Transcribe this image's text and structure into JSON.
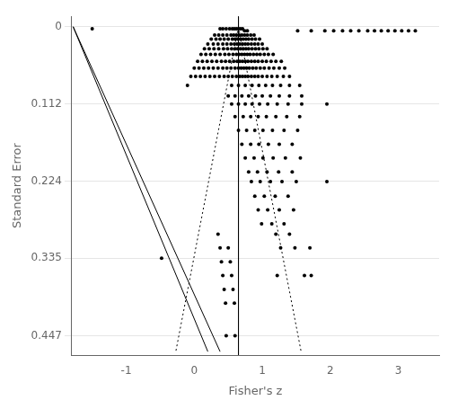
{
  "chart_data": {
    "type": "scatter",
    "xlabel": "Fisher's z",
    "ylabel": "Standard Error",
    "xlim": [
      -1.8,
      3.6
    ],
    "ylim": [
      0.475,
      -0.015
    ],
    "xticks": [
      -1,
      0,
      1,
      2,
      3
    ],
    "yticks": [
      0,
      0.112,
      0.224,
      0.335,
      0.447
    ],
    "grid": "y",
    "series": [
      {
        "type": "line",
        "line_style": "solid",
        "color": "#000000",
        "values": [
          [
            -1.78,
            0
          ],
          [
            0.2,
            0.47
          ]
        ]
      },
      {
        "type": "line",
        "line_style": "solid",
        "color": "#000000",
        "values": [
          [
            -1.78,
            0
          ],
          [
            0.38,
            0.47
          ]
        ]
      },
      {
        "type": "line",
        "line_style": "dotted",
        "color": "#000000",
        "values": [
          [
            0.65,
            0
          ],
          [
            -0.2712,
            0.47
          ]
        ]
      },
      {
        "type": "line",
        "line_style": "dotted",
        "color": "#000000",
        "values": [
          [
            0.65,
            0
          ],
          [
            1.5712,
            0.47
          ]
        ]
      },
      {
        "type": "line",
        "line_style": "solid",
        "color": "#000000",
        "values": [
          [
            0.65,
            -0.015
          ],
          [
            0.65,
            0.475
          ]
        ]
      },
      {
        "type": "scatter",
        "marker": "circle",
        "color": "#000000",
        "values": [
          [
            0.38,
            0.003
          ],
          [
            0.42,
            0.003
          ],
          [
            0.47,
            0.003
          ],
          [
            0.52,
            0.003
          ],
          [
            0.56,
            0.003
          ],
          [
            0.59,
            0.003
          ],
          [
            0.62,
            0.003
          ],
          [
            0.65,
            0.003
          ],
          [
            0.68,
            0.003
          ],
          [
            0.71,
            0.003
          ],
          [
            0.74,
            0.006
          ],
          [
            0.78,
            0.006
          ],
          [
            1.52,
            0.006
          ],
          [
            1.72,
            0.006
          ],
          [
            1.92,
            0.006
          ],
          [
            2.05,
            0.006
          ],
          [
            2.18,
            0.006
          ],
          [
            2.3,
            0.006
          ],
          [
            2.42,
            0.006
          ],
          [
            2.55,
            0.006
          ],
          [
            2.65,
            0.006
          ],
          [
            2.75,
            0.006
          ],
          [
            2.85,
            0.006
          ],
          [
            2.95,
            0.006
          ],
          [
            3.05,
            0.006
          ],
          [
            3.15,
            0.006
          ],
          [
            3.25,
            0.006
          ],
          [
            0.3,
            0.012
          ],
          [
            0.36,
            0.012
          ],
          [
            0.42,
            0.012
          ],
          [
            0.48,
            0.012
          ],
          [
            0.54,
            0.012
          ],
          [
            0.58,
            0.012
          ],
          [
            0.62,
            0.012
          ],
          [
            0.66,
            0.012
          ],
          [
            0.7,
            0.012
          ],
          [
            0.74,
            0.012
          ],
          [
            0.78,
            0.012
          ],
          [
            0.83,
            0.012
          ],
          [
            0.88,
            0.012
          ],
          [
            0.25,
            0.018
          ],
          [
            0.32,
            0.018
          ],
          [
            0.38,
            0.018
          ],
          [
            0.44,
            0.018
          ],
          [
            0.5,
            0.018
          ],
          [
            0.56,
            0.018
          ],
          [
            0.6,
            0.018
          ],
          [
            0.64,
            0.018
          ],
          [
            0.68,
            0.018
          ],
          [
            0.72,
            0.018
          ],
          [
            0.76,
            0.018
          ],
          [
            0.8,
            0.018
          ],
          [
            0.85,
            0.018
          ],
          [
            0.9,
            0.018
          ],
          [
            0.96,
            0.018
          ],
          [
            0.2,
            0.025
          ],
          [
            0.28,
            0.025
          ],
          [
            0.35,
            0.025
          ],
          [
            0.42,
            0.025
          ],
          [
            0.48,
            0.025
          ],
          [
            0.54,
            0.025
          ],
          [
            0.59,
            0.025
          ],
          [
            0.63,
            0.025
          ],
          [
            0.67,
            0.025
          ],
          [
            0.71,
            0.025
          ],
          [
            0.75,
            0.025
          ],
          [
            0.79,
            0.025
          ],
          [
            0.84,
            0.025
          ],
          [
            0.89,
            0.025
          ],
          [
            0.94,
            0.025
          ],
          [
            1.0,
            0.025
          ],
          [
            0.15,
            0.032
          ],
          [
            0.22,
            0.032
          ],
          [
            0.29,
            0.032
          ],
          [
            0.36,
            0.032
          ],
          [
            0.43,
            0.032
          ],
          [
            0.49,
            0.032
          ],
          [
            0.55,
            0.032
          ],
          [
            0.6,
            0.032
          ],
          [
            0.64,
            0.032
          ],
          [
            0.68,
            0.032
          ],
          [
            0.72,
            0.032
          ],
          [
            0.76,
            0.032
          ],
          [
            0.8,
            0.032
          ],
          [
            0.85,
            0.032
          ],
          [
            0.9,
            0.032
          ],
          [
            0.95,
            0.032
          ],
          [
            1.01,
            0.032
          ],
          [
            1.07,
            0.032
          ],
          [
            0.1,
            0.04
          ],
          [
            0.17,
            0.04
          ],
          [
            0.24,
            0.04
          ],
          [
            0.31,
            0.04
          ],
          [
            0.38,
            0.04
          ],
          [
            0.45,
            0.04
          ],
          [
            0.51,
            0.04
          ],
          [
            0.57,
            0.04
          ],
          [
            0.62,
            0.04
          ],
          [
            0.66,
            0.04
          ],
          [
            0.7,
            0.04
          ],
          [
            0.74,
            0.04
          ],
          [
            0.78,
            0.04
          ],
          [
            0.82,
            0.04
          ],
          [
            0.87,
            0.04
          ],
          [
            0.92,
            0.04
          ],
          [
            0.97,
            0.04
          ],
          [
            1.03,
            0.04
          ],
          [
            1.09,
            0.04
          ],
          [
            1.16,
            0.04
          ],
          [
            0.05,
            0.05
          ],
          [
            0.12,
            0.05
          ],
          [
            0.19,
            0.05
          ],
          [
            0.26,
            0.05
          ],
          [
            0.33,
            0.05
          ],
          [
            0.4,
            0.05
          ],
          [
            0.46,
            0.05
          ],
          [
            0.52,
            0.05
          ],
          [
            0.58,
            0.05
          ],
          [
            0.63,
            0.05
          ],
          [
            0.67,
            0.05
          ],
          [
            0.71,
            0.05
          ],
          [
            0.75,
            0.05
          ],
          [
            0.79,
            0.05
          ],
          [
            0.84,
            0.05
          ],
          [
            0.89,
            0.05
          ],
          [
            0.94,
            0.05
          ],
          [
            1.0,
            0.05
          ],
          [
            1.06,
            0.05
          ],
          [
            1.13,
            0.05
          ],
          [
            1.2,
            0.05
          ],
          [
            1.28,
            0.05
          ],
          [
            0.0,
            0.06
          ],
          [
            0.07,
            0.06
          ],
          [
            0.14,
            0.06
          ],
          [
            0.21,
            0.06
          ],
          [
            0.28,
            0.06
          ],
          [
            0.35,
            0.06
          ],
          [
            0.42,
            0.06
          ],
          [
            0.48,
            0.06
          ],
          [
            0.54,
            0.06
          ],
          [
            0.6,
            0.06
          ],
          [
            0.65,
            0.06
          ],
          [
            0.69,
            0.06
          ],
          [
            0.73,
            0.06
          ],
          [
            0.77,
            0.06
          ],
          [
            0.81,
            0.06
          ],
          [
            0.86,
            0.06
          ],
          [
            0.91,
            0.06
          ],
          [
            0.97,
            0.06
          ],
          [
            1.03,
            0.06
          ],
          [
            1.1,
            0.06
          ],
          [
            1.17,
            0.06
          ],
          [
            1.25,
            0.06
          ],
          [
            1.33,
            0.06
          ],
          [
            -0.05,
            0.072
          ],
          [
            0.02,
            0.072
          ],
          [
            0.09,
            0.072
          ],
          [
            0.16,
            0.072
          ],
          [
            0.23,
            0.072
          ],
          [
            0.3,
            0.072
          ],
          [
            0.37,
            0.072
          ],
          [
            0.44,
            0.072
          ],
          [
            0.5,
            0.072
          ],
          [
            0.56,
            0.072
          ],
          [
            0.62,
            0.072
          ],
          [
            0.67,
            0.072
          ],
          [
            0.71,
            0.072
          ],
          [
            0.75,
            0.072
          ],
          [
            0.79,
            0.072
          ],
          [
            0.84,
            0.072
          ],
          [
            0.89,
            0.072
          ],
          [
            0.94,
            0.072
          ],
          [
            1.0,
            0.072
          ],
          [
            1.07,
            0.072
          ],
          [
            1.14,
            0.072
          ],
          [
            1.22,
            0.072
          ],
          [
            1.31,
            0.072
          ],
          [
            1.4,
            0.072
          ],
          [
            -0.1,
            0.085
          ],
          [
            0.55,
            0.085
          ],
          [
            0.65,
            0.085
          ],
          [
            0.75,
            0.085
          ],
          [
            0.85,
            0.085
          ],
          [
            0.95,
            0.085
          ],
          [
            1.05,
            0.085
          ],
          [
            1.15,
            0.085
          ],
          [
            1.27,
            0.085
          ],
          [
            1.4,
            0.085
          ],
          [
            1.55,
            0.085
          ],
          [
            0.5,
            0.1
          ],
          [
            0.6,
            0.1
          ],
          [
            0.7,
            0.1
          ],
          [
            0.8,
            0.1
          ],
          [
            0.9,
            0.1
          ],
          [
            1.0,
            0.1
          ],
          [
            1.12,
            0.1
          ],
          [
            1.25,
            0.1
          ],
          [
            1.4,
            0.1
          ],
          [
            1.58,
            0.1
          ],
          [
            0.55,
            0.112
          ],
          [
            0.65,
            0.112
          ],
          [
            0.75,
            0.112
          ],
          [
            0.85,
            0.112
          ],
          [
            0.96,
            0.112
          ],
          [
            1.08,
            0.112
          ],
          [
            1.22,
            0.112
          ],
          [
            1.38,
            0.112
          ],
          [
            1.58,
            0.112
          ],
          [
            1.95,
            0.112
          ],
          [
            0.6,
            0.13
          ],
          [
            0.72,
            0.13
          ],
          [
            0.83,
            0.13
          ],
          [
            0.94,
            0.13
          ],
          [
            1.06,
            0.13
          ],
          [
            1.2,
            0.13
          ],
          [
            1.36,
            0.13
          ],
          [
            1.55,
            0.13
          ],
          [
            0.65,
            0.15
          ],
          [
            0.77,
            0.15
          ],
          [
            0.89,
            0.15
          ],
          [
            1.01,
            0.15
          ],
          [
            1.15,
            0.15
          ],
          [
            1.32,
            0.15
          ],
          [
            1.52,
            0.15
          ],
          [
            0.7,
            0.17
          ],
          [
            0.83,
            0.17
          ],
          [
            0.95,
            0.17
          ],
          [
            1.09,
            0.17
          ],
          [
            1.25,
            0.17
          ],
          [
            1.44,
            0.17
          ],
          [
            0.75,
            0.19
          ],
          [
            0.88,
            0.19
          ],
          [
            1.01,
            0.19
          ],
          [
            1.16,
            0.19
          ],
          [
            1.34,
            0.19
          ],
          [
            1.56,
            0.19
          ],
          [
            0.8,
            0.21
          ],
          [
            0.93,
            0.21
          ],
          [
            1.07,
            0.21
          ],
          [
            1.24,
            0.21
          ],
          [
            1.44,
            0.21
          ],
          [
            0.84,
            0.224
          ],
          [
            0.97,
            0.224
          ],
          [
            1.12,
            0.224
          ],
          [
            1.29,
            0.224
          ],
          [
            1.5,
            0.224
          ],
          [
            1.95,
            0.224
          ],
          [
            0.89,
            0.245
          ],
          [
            1.03,
            0.245
          ],
          [
            1.19,
            0.245
          ],
          [
            1.38,
            0.245
          ],
          [
            0.94,
            0.265
          ],
          [
            1.08,
            0.265
          ],
          [
            1.25,
            0.265
          ],
          [
            1.46,
            0.265
          ],
          [
            0.99,
            0.285
          ],
          [
            1.14,
            0.285
          ],
          [
            1.32,
            0.285
          ],
          [
            0.35,
            0.3
          ],
          [
            1.2,
            0.3
          ],
          [
            1.4,
            0.3
          ],
          [
            0.38,
            0.32
          ],
          [
            0.5,
            0.32
          ],
          [
            1.27,
            0.32
          ],
          [
            1.48,
            0.32
          ],
          [
            1.7,
            0.32
          ],
          [
            -0.48,
            0.335
          ],
          [
            0.4,
            0.34
          ],
          [
            0.53,
            0.34
          ],
          [
            0.42,
            0.36
          ],
          [
            0.55,
            0.36
          ],
          [
            1.22,
            0.36
          ],
          [
            1.62,
            0.36
          ],
          [
            1.72,
            0.36
          ],
          [
            0.44,
            0.38
          ],
          [
            0.57,
            0.38
          ],
          [
            0.46,
            0.4
          ],
          [
            0.59,
            0.4
          ],
          [
            0.47,
            0.447
          ],
          [
            0.6,
            0.447
          ],
          [
            -1.5,
            0.003
          ]
        ]
      }
    ]
  }
}
